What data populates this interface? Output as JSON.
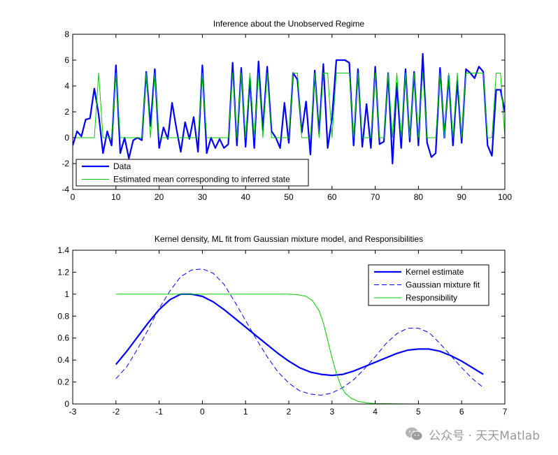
{
  "colors": {
    "data": "#0000ff",
    "green": "#00cc00",
    "axis": "#000000"
  },
  "chart_data": [
    {
      "type": "line",
      "title": "Inference about the Unobserved Regime",
      "xlabel": "",
      "ylabel": "",
      "xlim": [
        0,
        100
      ],
      "ylim": [
        -4,
        8
      ],
      "xticks": [
        0,
        10,
        20,
        30,
        40,
        50,
        60,
        70,
        80,
        90,
        100
      ],
      "yticks": [
        -4,
        -2,
        0,
        2,
        4,
        6,
        8
      ],
      "legend_position": "bottom-left",
      "series": [
        {
          "name": "Data",
          "style": "solid-thick",
          "color": "#0000ff",
          "x": [
            0,
            1,
            2,
            3,
            4,
            5,
            6,
            7,
            8,
            9,
            10,
            11,
            12,
            13,
            14,
            15,
            16,
            17,
            18,
            19,
            20,
            21,
            22,
            23,
            24,
            25,
            26,
            27,
            28,
            29,
            30,
            31,
            32,
            33,
            34,
            35,
            36,
            37,
            38,
            39,
            40,
            41,
            42,
            43,
            44,
            45,
            46,
            47,
            48,
            49,
            50,
            51,
            52,
            53,
            54,
            55,
            56,
            57,
            58,
            59,
            60,
            61,
            62,
            63,
            64,
            65,
            66,
            67,
            68,
            69,
            70,
            71,
            72,
            73,
            74,
            75,
            76,
            77,
            78,
            79,
            80,
            81,
            82,
            83,
            84,
            85,
            86,
            87,
            88,
            89,
            90,
            91,
            92,
            93,
            94,
            95,
            96,
            97,
            98,
            99,
            100
          ],
          "y": [
            -0.6,
            0.5,
            0.1,
            1.4,
            1.5,
            3.8,
            1.8,
            -1.2,
            0.5,
            -0.6,
            5.6,
            -1.2,
            0.0,
            -1.6,
            -0.2,
            0.0,
            -0.2,
            5.1,
            0.9,
            5.3,
            -0.8,
            0.8,
            -0.1,
            2.7,
            0.7,
            -1.1,
            1.2,
            -0.1,
            1.6,
            -1.1,
            5.6,
            -1.2,
            0.0,
            -0.8,
            -0.1,
            -0.8,
            -0.5,
            5.8,
            -0.6,
            5.4,
            -0.7,
            4.6,
            -0.8,
            5.9,
            0.6,
            5.5,
            0.5,
            0.0,
            -0.8,
            2.7,
            -0.4,
            5.0,
            4.5,
            0.4,
            2.8,
            -1.3,
            5.2,
            0.3,
            5.7,
            -0.8,
            1.5,
            6.0,
            6.0,
            6.0,
            5.8,
            -0.6,
            5.3,
            -0.7,
            2.6,
            -0.8,
            5.5,
            -0.5,
            -0.3,
            5.0,
            -2.0,
            4.2,
            -0.8,
            5.3,
            -0.3,
            5.1,
            -0.6,
            6.5,
            -0.4,
            -1.5,
            -1.2,
            5.4,
            0.0,
            4.8,
            -0.6,
            4.4,
            -0.4,
            5.3,
            5.0,
            4.6,
            5.5,
            5.1,
            -0.6,
            -1.4,
            3.7,
            3.7,
            2.0
          ]
        },
        {
          "name": "Estimated mean corresponding to inferred state",
          "style": "solid-thin",
          "color": "#00cc00",
          "x": [
            0,
            1,
            2,
            3,
            4,
            5,
            6,
            7,
            8,
            9,
            10,
            11,
            12,
            13,
            14,
            15,
            16,
            17,
            18,
            19,
            20,
            21,
            22,
            23,
            24,
            25,
            26,
            27,
            28,
            29,
            30,
            31,
            32,
            33,
            34,
            35,
            36,
            37,
            38,
            39,
            40,
            41,
            42,
            43,
            44,
            45,
            46,
            47,
            48,
            49,
            50,
            51,
            52,
            53,
            54,
            55,
            56,
            57,
            58,
            59,
            60,
            61,
            62,
            63,
            64,
            65,
            66,
            67,
            68,
            69,
            70,
            71,
            72,
            73,
            74,
            75,
            76,
            77,
            78,
            79,
            80,
            81,
            82,
            83,
            84,
            85,
            86,
            87,
            88,
            89,
            90,
            91,
            92,
            93,
            94,
            95,
            96,
            97,
            98,
            99,
            100
          ],
          "y": [
            0,
            0,
            0,
            0,
            0,
            0,
            5,
            0,
            0,
            0,
            5,
            0,
            0,
            0,
            0,
            0,
            0,
            5,
            0,
            5,
            0,
            0,
            0,
            0,
            0,
            0,
            0,
            0,
            0,
            0,
            5,
            0,
            0,
            0,
            0,
            0,
            0,
            5,
            0,
            5,
            0,
            5,
            0,
            5,
            0,
            5,
            0,
            0,
            0,
            0,
            0,
            5,
            5,
            0,
            0,
            0,
            5,
            0,
            5,
            5,
            0,
            5,
            5,
            5,
            5,
            0,
            5,
            0,
            0,
            0,
            5,
            0,
            0,
            5,
            0,
            5,
            0,
            5,
            0,
            5,
            0,
            5,
            0,
            0,
            0,
            5,
            0,
            5,
            0,
            5,
            0,
            5,
            5,
            5,
            5,
            5,
            0,
            0,
            5,
            5,
            0
          ]
        }
      ]
    },
    {
      "type": "line",
      "title": "Kernel density, ML fit from Gaussian mixture model, and Responsibilities",
      "xlabel": "",
      "ylabel": "",
      "xlim": [
        -3,
        7
      ],
      "ylim": [
        0,
        1.4
      ],
      "xticks": [
        -3,
        -2,
        -1,
        0,
        1,
        2,
        3,
        4,
        5,
        6,
        7
      ],
      "yticks": [
        0,
        0.2,
        0.4,
        0.6,
        0.8,
        1,
        1.2,
        1.4
      ],
      "legend_position": "top-right",
      "series": [
        {
          "name": "Kernel estimate",
          "style": "solid-thick",
          "color": "#0000ff",
          "x": [
            -2.0,
            -1.75,
            -1.5,
            -1.25,
            -1.0,
            -0.75,
            -0.5,
            -0.25,
            0.0,
            0.25,
            0.5,
            0.75,
            1.0,
            1.25,
            1.5,
            1.75,
            2.0,
            2.25,
            2.5,
            2.75,
            3.0,
            3.25,
            3.5,
            3.75,
            4.0,
            4.25,
            4.5,
            4.75,
            5.0,
            5.25,
            5.5,
            5.75,
            6.0,
            6.25,
            6.5
          ],
          "y": [
            0.36,
            0.48,
            0.61,
            0.74,
            0.86,
            0.95,
            1.0,
            1.0,
            0.98,
            0.93,
            0.86,
            0.78,
            0.7,
            0.62,
            0.54,
            0.46,
            0.39,
            0.33,
            0.29,
            0.27,
            0.26,
            0.27,
            0.3,
            0.34,
            0.38,
            0.42,
            0.46,
            0.49,
            0.5,
            0.5,
            0.48,
            0.44,
            0.39,
            0.33,
            0.27
          ]
        },
        {
          "name": "Gaussian mixture fit",
          "style": "dashed",
          "color": "#0000ff",
          "x": [
            -2.0,
            -1.75,
            -1.5,
            -1.25,
            -1.0,
            -0.75,
            -0.5,
            -0.25,
            0.0,
            0.25,
            0.5,
            0.75,
            1.0,
            1.25,
            1.5,
            1.75,
            2.0,
            2.25,
            2.5,
            2.75,
            3.0,
            3.25,
            3.5,
            3.75,
            4.0,
            4.25,
            4.5,
            4.75,
            5.0,
            5.25,
            5.5,
            5.75,
            6.0,
            6.25,
            6.5
          ],
          "y": [
            0.23,
            0.34,
            0.5,
            0.68,
            0.87,
            1.03,
            1.16,
            1.22,
            1.23,
            1.19,
            1.09,
            0.93,
            0.76,
            0.59,
            0.43,
            0.29,
            0.19,
            0.12,
            0.09,
            0.08,
            0.1,
            0.15,
            0.22,
            0.32,
            0.43,
            0.55,
            0.64,
            0.69,
            0.69,
            0.65,
            0.55,
            0.44,
            0.33,
            0.23,
            0.15
          ]
        },
        {
          "name": "Responsibility",
          "style": "solid-thin",
          "color": "#00cc00",
          "x": [
            -2.0,
            -1.5,
            -1.0,
            -0.5,
            0.0,
            0.5,
            1.0,
            1.5,
            2.0,
            2.2,
            2.4,
            2.55,
            2.7,
            2.8,
            2.9,
            3.0,
            3.1,
            3.2,
            3.3,
            3.45,
            3.6,
            3.8,
            4.0,
            4.5,
            5.0,
            5.5,
            6.0,
            6.5
          ],
          "y": [
            1,
            1,
            1,
            1,
            1,
            1,
            1,
            1,
            1,
            0.995,
            0.98,
            0.94,
            0.85,
            0.74,
            0.58,
            0.42,
            0.28,
            0.17,
            0.1,
            0.05,
            0.025,
            0.01,
            0.004,
            0.001,
            0,
            0,
            0,
            0
          ]
        }
      ]
    }
  ],
  "watermark": {
    "text": "公众号 · 天天Matlab",
    "icon": "wechat-icon"
  }
}
